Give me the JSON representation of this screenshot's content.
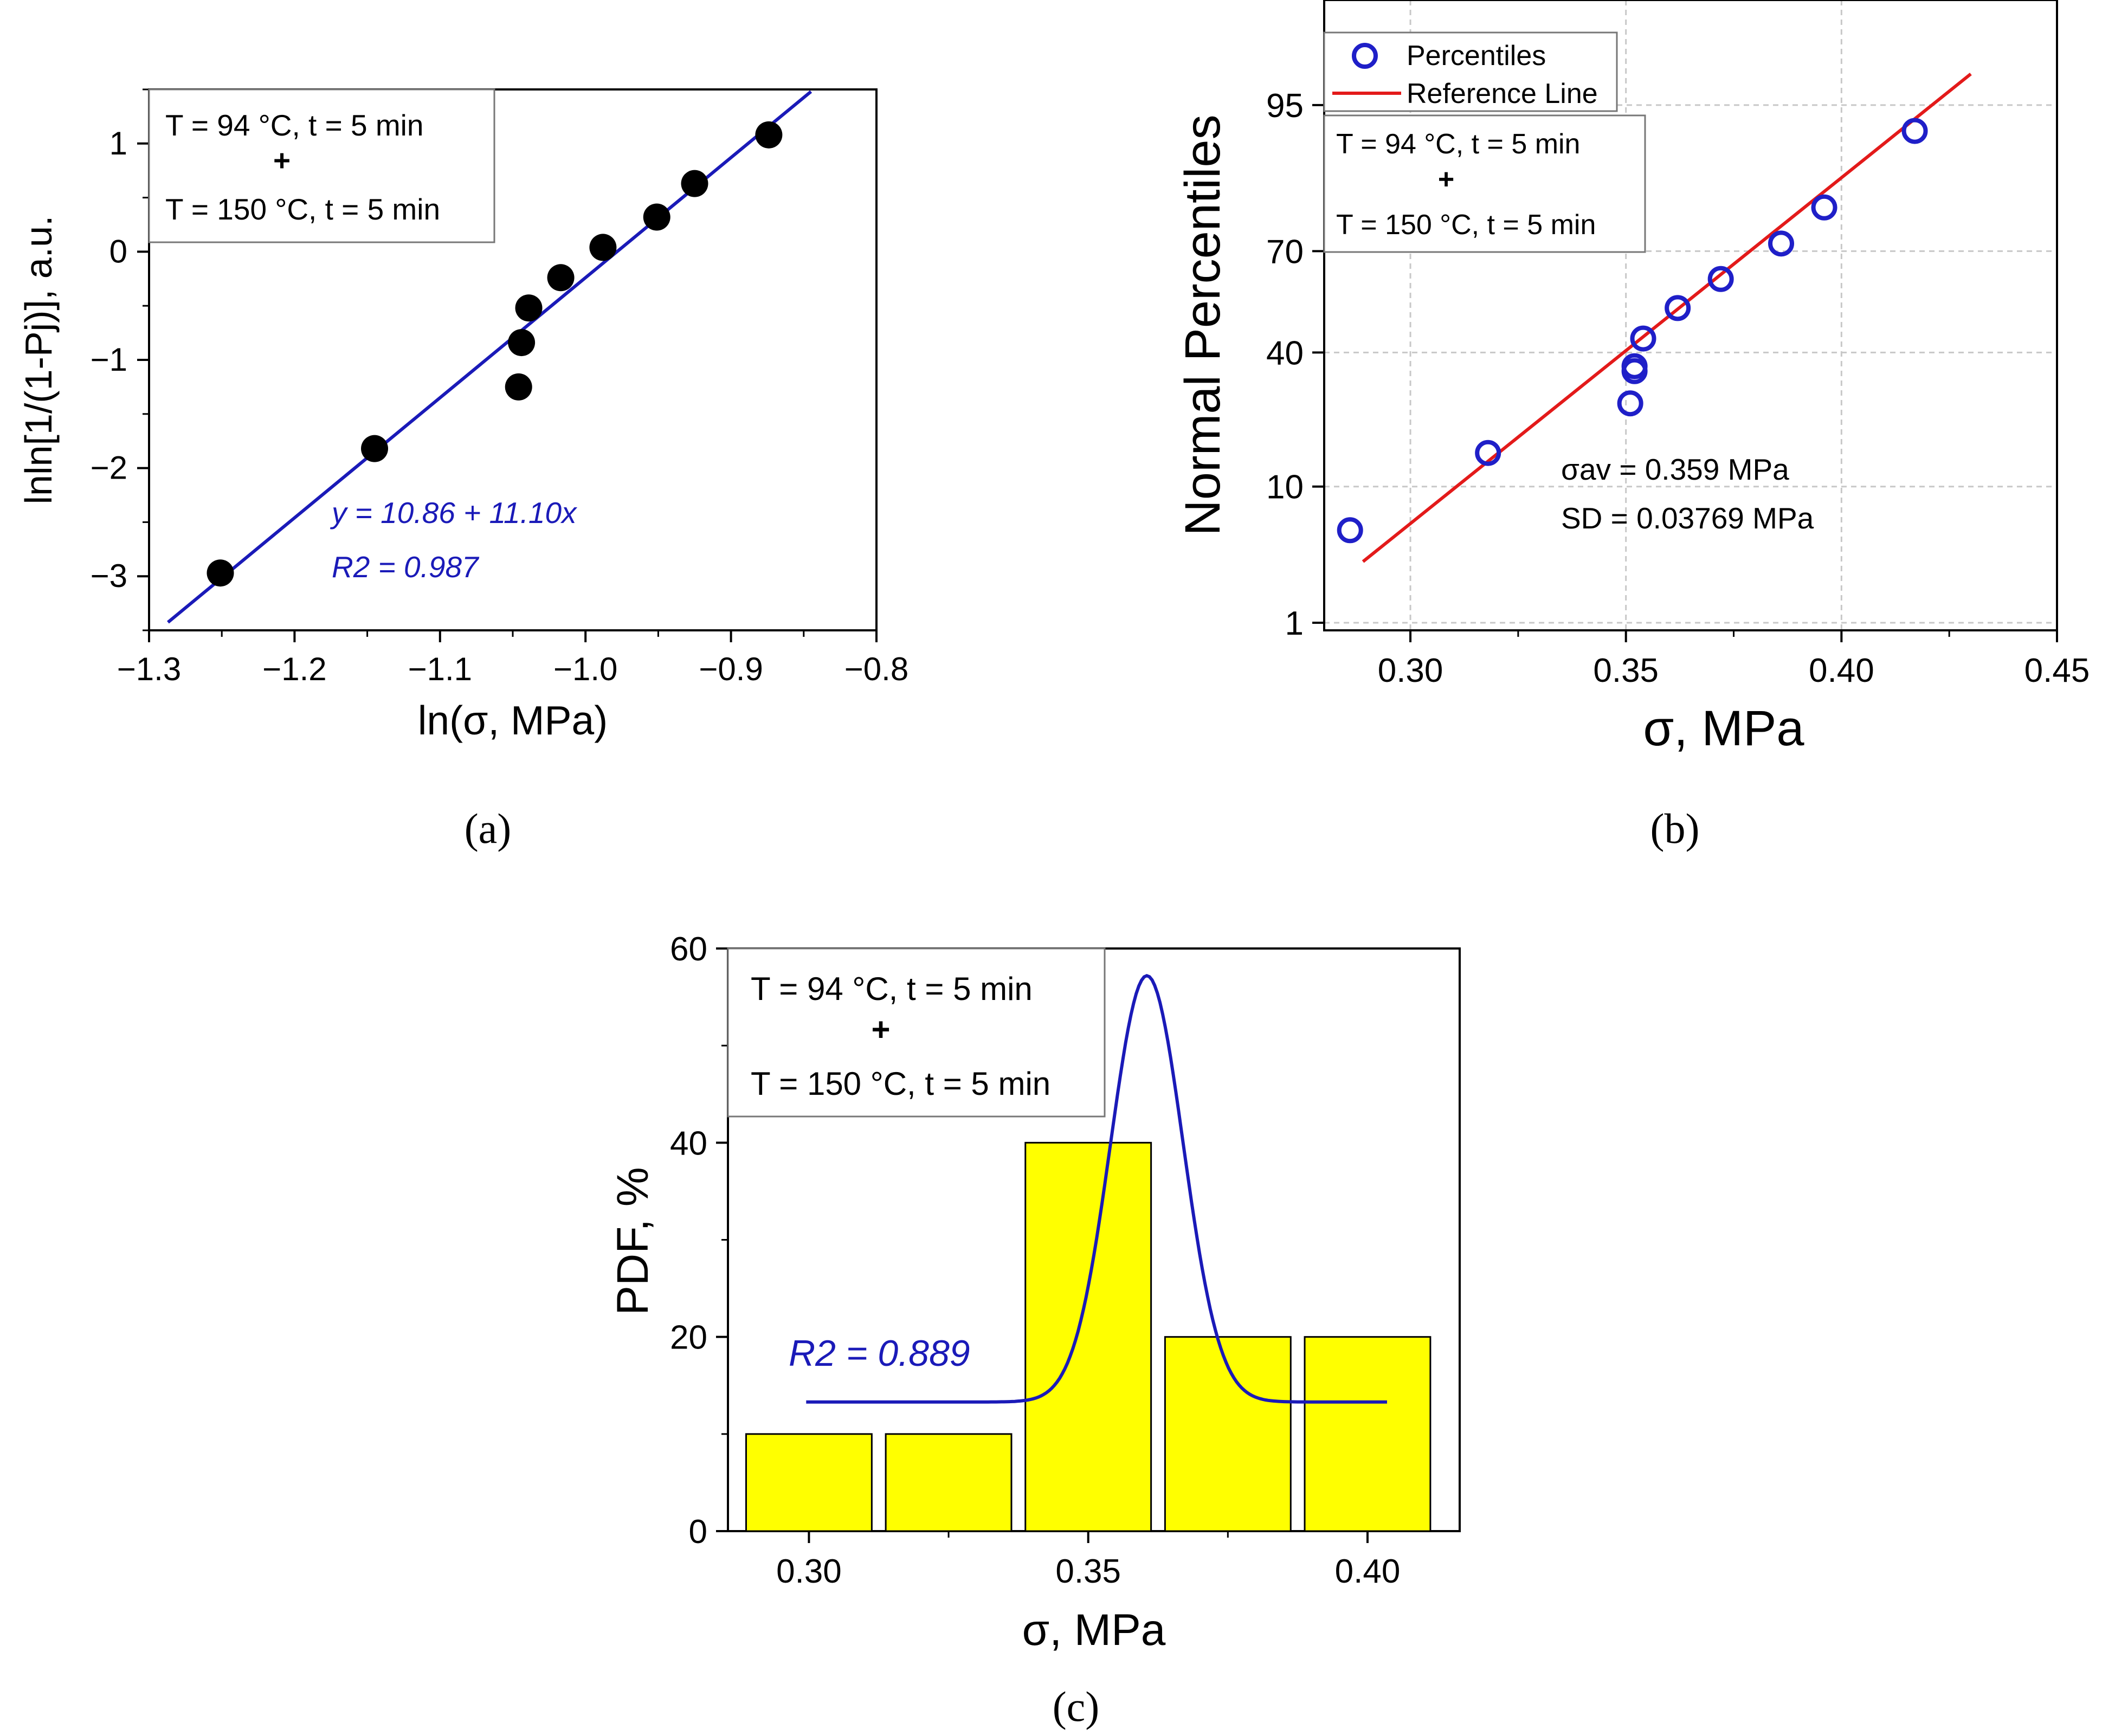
{
  "colors": {
    "axis": "#000000",
    "fit_blue": "#1a1ab8",
    "marker_blue": "#1f1fc8",
    "ref_red": "#e31a1a",
    "bar_yellow": "#ffff00",
    "grid": "#c8c8c8",
    "legend_border": "#777777"
  },
  "panel_labels": {
    "a": "(a)",
    "b": "(b)",
    "c": "(c)"
  },
  "conditions": {
    "line1": "T = 94 °C, t = 5 min",
    "plus": "+",
    "line2": "T = 150 °C, t = 5 min"
  },
  "chart_data": [
    {
      "id": "a",
      "type": "scatter",
      "title": "",
      "xlabel": "ln(σ, MPa)",
      "ylabel": "lnln[1/(1-Pj)], a.u.",
      "xlim": [
        -1.3,
        -0.8
      ],
      "ylim": [
        -3.5,
        1.5
      ],
      "xticks": [
        -1.3,
        -1.2,
        -1.1,
        -1.0,
        -0.9,
        -0.8
      ],
      "xtick_labels": [
        "−1.3",
        "−1.2",
        "−1.1",
        "−1.0",
        "−0.9",
        "−0.8"
      ],
      "yticks": [
        -3,
        -2,
        -1,
        0,
        1
      ],
      "ytick_labels": [
        "−3",
        "−2",
        "−1",
        "0",
        "1"
      ],
      "points": {
        "x": [
          -1.251,
          -1.145,
          -1.046,
          -1.044,
          -1.039,
          -1.017,
          -0.988,
          -0.951,
          -0.925,
          -0.874
        ],
        "y": [
          -2.97,
          -1.82,
          -1.25,
          -0.84,
          -0.52,
          -0.24,
          0.04,
          0.32,
          0.63,
          1.08
        ]
      },
      "fit": {
        "intercept": 10.86,
        "slope": 11.1,
        "x_range": [
          -1.287,
          -0.845
        ]
      },
      "equation_label": "y = 10.86 + 11.10x",
      "r2_label": "R2 = 0.987"
    },
    {
      "id": "b",
      "type": "scatter",
      "title": "",
      "xlabel": "σ, MPa",
      "ylabel": "Normal Percentiles",
      "xlim": [
        0.28,
        0.45
      ],
      "yscale": "normal-probability",
      "ylim_percent": [
        1,
        99
      ],
      "xticks": [
        0.3,
        0.35,
        0.4,
        0.45
      ],
      "xtick_labels": [
        "0.30",
        "0.35",
        "0.40",
        "0.45"
      ],
      "yticks": [
        1,
        10,
        40,
        70,
        95
      ],
      "ytick_labels": [
        "1",
        "10",
        "40",
        "70",
        "95"
      ],
      "grid": true,
      "points": {
        "x": [
          0.286,
          0.318,
          0.351,
          0.352,
          0.352,
          0.354,
          0.362,
          0.372,
          0.386,
          0.396,
          0.417
        ],
        "y": [
          5.3,
          15.3,
          26.0,
          34.6,
          36.0,
          44.2,
          53.5,
          62.2,
          72.0,
          80.5,
          92.6
        ]
      },
      "reference_line": {
        "mean": 0.359,
        "sd": 0.03769,
        "x_range": [
          0.289,
          0.43
        ]
      },
      "legend": {
        "position": "top-left",
        "entries": [
          "Percentiles",
          "Reference Line"
        ]
      },
      "stats_label_sigma": "σav = 0.359 MPa",
      "stats_label_sd": "SD = 0.03769 MPa"
    },
    {
      "id": "c",
      "type": "bar",
      "title": "",
      "xlabel": "σ, MPa",
      "ylabel": "PDF, %",
      "xlim": [
        0.2855,
        0.4165
      ],
      "ylim": [
        0,
        60
      ],
      "xticks": [
        0.3,
        0.35,
        0.4
      ],
      "xtick_labels": [
        "0.30",
        "0.35",
        "0.40"
      ],
      "yticks": [
        0,
        20,
        40,
        60
      ],
      "ytick_labels": [
        "0",
        "20",
        "40",
        "60"
      ],
      "bins": [
        {
          "center": 0.3,
          "value": 10
        },
        {
          "center": 0.325,
          "value": 10
        },
        {
          "center": 0.35,
          "value": 40
        },
        {
          "center": 0.375,
          "value": 20
        },
        {
          "center": 0.4,
          "value": 20
        }
      ],
      "bin_width": 0.025,
      "fit_curve": {
        "type": "gaussian",
        "baseline": 13.3,
        "amplitude": 43.9,
        "center": 0.3605,
        "sigma": 0.0065,
        "x_range": [
          0.2995,
          0.4035
        ]
      },
      "r2_label": "R2 = 0.889"
    }
  ]
}
